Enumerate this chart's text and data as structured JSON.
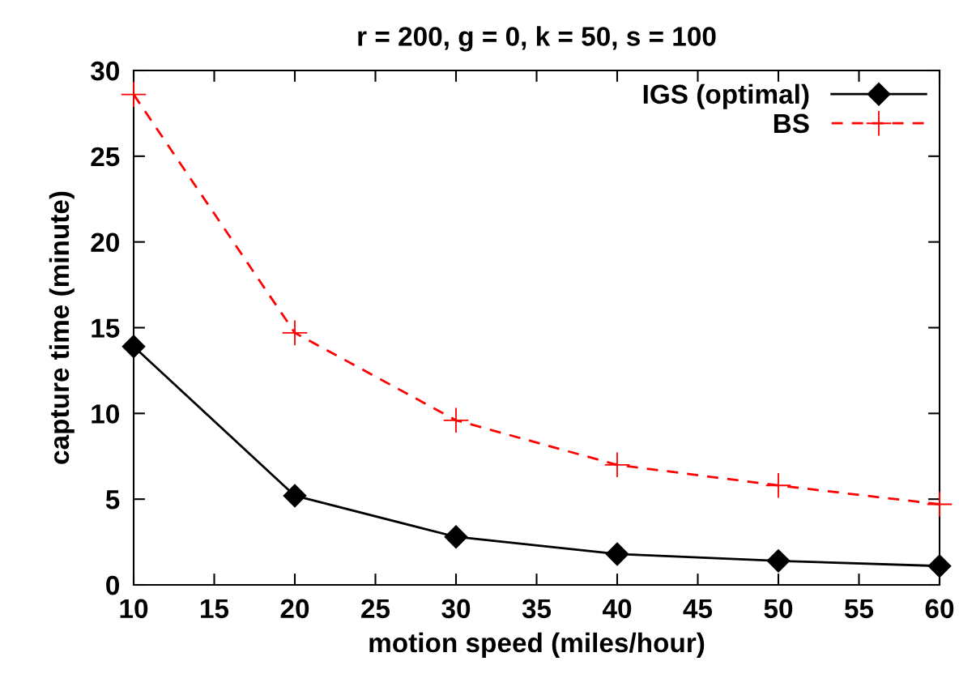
{
  "chart_data": {
    "type": "line",
    "title": "r = 200, g = 0, k = 50, s = 100",
    "xlabel": "motion speed (miles/hour)",
    "ylabel": "capture time (minute)",
    "x": [
      10,
      20,
      30,
      40,
      50,
      60
    ],
    "series": [
      {
        "name": "IGS (optimal)",
        "color": "#000000",
        "values": [
          13.9,
          5.2,
          2.8,
          1.8,
          1.4,
          1.1
        ],
        "marker": "diamond",
        "line_style": "solid"
      },
      {
        "name": "BS",
        "color": "#ff0000",
        "values": [
          28.6,
          14.7,
          9.6,
          7.0,
          5.8,
          4.7
        ],
        "marker": "cross",
        "line_style": "dashed"
      }
    ],
    "xlim": [
      10,
      60
    ],
    "xticks": [
      10,
      15,
      20,
      25,
      30,
      35,
      40,
      45,
      50,
      55,
      60
    ],
    "ylim": [
      0,
      30
    ],
    "yticks": [
      0,
      5,
      10,
      15,
      20,
      25,
      30
    ],
    "grid": false,
    "legend": "top right"
  }
}
